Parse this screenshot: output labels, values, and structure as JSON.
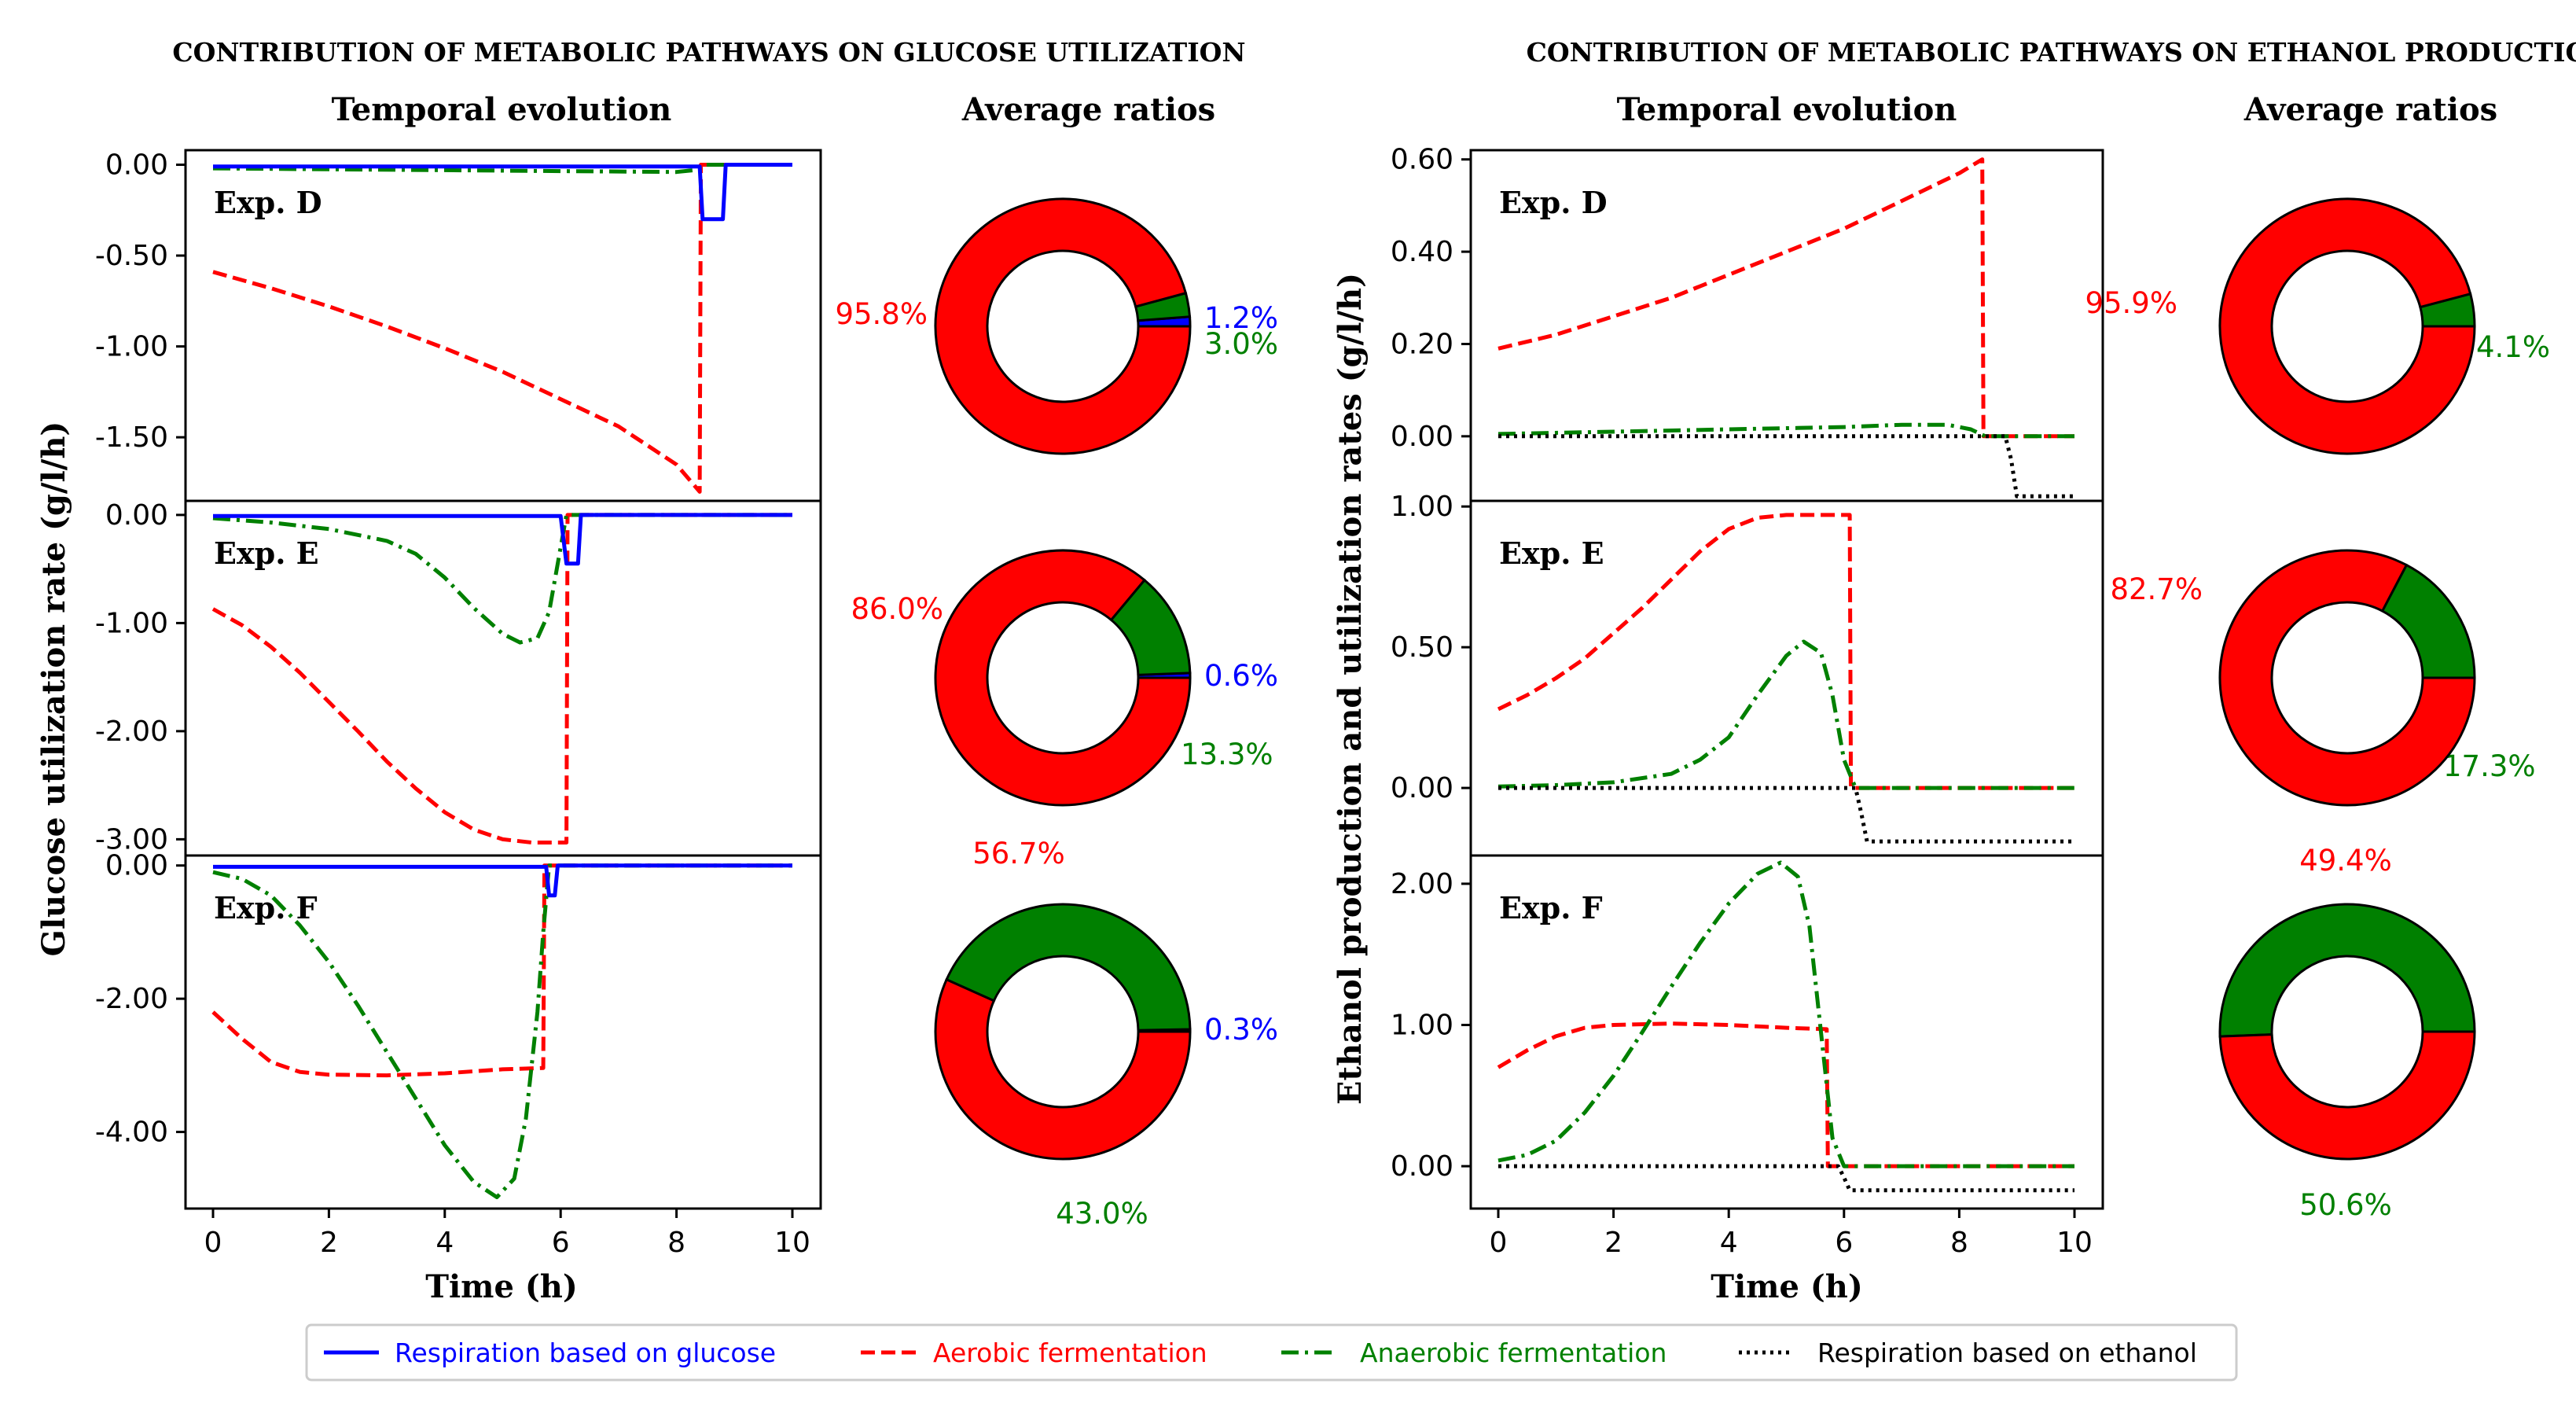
{
  "colors": {
    "respiration_glucose": "#0000ff",
    "aerobic_fermentation": "#ff0000",
    "anaerobic_fermentation": "#008000",
    "respiration_ethanol": "#000000"
  },
  "titles": {
    "left_main": "CONTRIBUTION OF METABOLIC PATHWAYS ON GLUCOSE UTILIZATION",
    "right_main": "CONTRIBUTION OF METABOLIC PATHWAYS ON ETHANOL PRODUCTION",
    "left_temporal": "Temporal evolution",
    "left_average": "Average ratios",
    "right_temporal": "Temporal evolution",
    "right_average": "Average ratios",
    "left_ylabel": "Glucose utilization rate (g/l/h)",
    "right_ylabel": "Ethanol production and utilization rates (g/l/h)",
    "left_xlabel": "Time (h)",
    "right_xlabel": "Time (h)"
  },
  "legend": {
    "respiration_glucose": "Respiration based on glucose",
    "aerobic_fermentation": "Aerobic fermentation",
    "anaerobic_fermentation": "Anaerobic fermentation",
    "respiration_ethanol": "Respiration based on ethanol"
  },
  "chart_data": [
    {
      "type": "line",
      "panel": "Glucose utilization - Exp. D",
      "label": "Exp. D",
      "xlim": [
        0,
        10
      ],
      "ylim": [
        -1.85,
        0.08
      ],
      "yticks": [
        0.0,
        -0.5,
        -1.0,
        -1.5
      ],
      "ytick_labels": [
        "0.00",
        "-0.50",
        "-1.00",
        "-1.50"
      ],
      "series": [
        {
          "key": "respiration_glucose",
          "x": [
            0,
            8.2,
            8.4,
            8.45,
            8.8,
            8.85,
            10
          ],
          "y": [
            -0.01,
            -0.01,
            -0.01,
            -0.3,
            -0.3,
            0,
            0
          ]
        },
        {
          "key": "aerobic_fermentation",
          "x": [
            0,
            1,
            2,
            3,
            4,
            5,
            6,
            7,
            8,
            8.4,
            8.42,
            10
          ],
          "y": [
            -0.59,
            -0.68,
            -0.78,
            -0.89,
            -1.01,
            -1.14,
            -1.29,
            -1.44,
            -1.65,
            -1.8,
            0,
            0
          ]
        },
        {
          "key": "anaerobic_fermentation",
          "x": [
            0,
            2,
            4,
            6,
            8,
            8.3,
            8.45,
            10
          ],
          "y": [
            -0.02,
            -0.025,
            -0.03,
            -0.035,
            -0.04,
            -0.03,
            0,
            0
          ]
        }
      ]
    },
    {
      "type": "line",
      "panel": "Glucose utilization - Exp. E",
      "label": "Exp. E",
      "xlim": [
        0,
        10
      ],
      "ylim": [
        -3.15,
        0.13
      ],
      "yticks": [
        0.0,
        -1.0,
        -2.0,
        -3.0
      ],
      "ytick_labels": [
        "0.00",
        "-1.00",
        "-2.00",
        "-3.00"
      ],
      "series": [
        {
          "key": "respiration_glucose",
          "x": [
            0,
            6.0,
            6.1,
            6.3,
            6.35,
            10
          ],
          "y": [
            -0.01,
            -0.01,
            -0.45,
            -0.45,
            0,
            0
          ]
        },
        {
          "key": "aerobic_fermentation",
          "x": [
            0,
            0.5,
            1,
            1.5,
            2,
            2.5,
            3,
            3.5,
            4,
            4.5,
            5,
            5.5,
            6.1,
            6.12,
            10
          ],
          "y": [
            -0.87,
            -1.02,
            -1.22,
            -1.46,
            -1.73,
            -2.0,
            -2.28,
            -2.53,
            -2.75,
            -2.91,
            -3.0,
            -3.03,
            -3.03,
            0,
            0
          ]
        },
        {
          "key": "anaerobic_fermentation",
          "x": [
            0,
            1,
            2,
            3,
            3.5,
            4,
            4.5,
            5,
            5.3,
            5.6,
            5.8,
            6.0,
            6.1,
            10
          ],
          "y": [
            -0.03,
            -0.07,
            -0.13,
            -0.24,
            -0.36,
            -0.58,
            -0.86,
            -1.1,
            -1.18,
            -1.14,
            -0.9,
            -0.3,
            0,
            0
          ]
        }
      ]
    },
    {
      "type": "line",
      "panel": "Glucose utilization - Exp. F",
      "label": "Exp. F",
      "xlim": [
        0,
        10
      ],
      "ylim": [
        -5.15,
        0.15
      ],
      "yticks": [
        0.0,
        -2.0,
        -4.0
      ],
      "ytick_labels": [
        "0.00",
        "-2.00",
        "-4.00"
      ],
      "series": [
        {
          "key": "respiration_glucose",
          "x": [
            0,
            5.75,
            5.8,
            5.9,
            5.95,
            10
          ],
          "y": [
            -0.02,
            -0.02,
            -0.45,
            -0.45,
            0,
            0
          ]
        },
        {
          "key": "aerobic_fermentation",
          "x": [
            0,
            0.5,
            1,
            1.5,
            2,
            3,
            4,
            5,
            5.7,
            5.72,
            10
          ],
          "y": [
            -2.2,
            -2.6,
            -2.95,
            -3.1,
            -3.14,
            -3.15,
            -3.12,
            -3.06,
            -3.04,
            0,
            0
          ]
        },
        {
          "key": "anaerobic_fermentation",
          "x": [
            0,
            0.5,
            1,
            1.5,
            2,
            2.5,
            3,
            3.5,
            4,
            4.5,
            4.9,
            5.2,
            5.4,
            5.6,
            5.7,
            5.8,
            10
          ],
          "y": [
            -0.1,
            -0.2,
            -0.45,
            -0.9,
            -1.45,
            -2.1,
            -2.8,
            -3.5,
            -4.2,
            -4.75,
            -4.98,
            -4.7,
            -3.8,
            -2.2,
            -1.0,
            0,
            0
          ]
        }
      ]
    },
    {
      "type": "line",
      "panel": "Ethanol - Exp. D",
      "label": "Exp. D",
      "xlim": [
        0,
        10
      ],
      "ylim": [
        -0.14,
        0.62
      ],
      "yticks": [
        0.6,
        0.4,
        0.2,
        0.0
      ],
      "ytick_labels": [
        "0.60",
        "0.40",
        "0.20",
        "0.00"
      ],
      "series": [
        {
          "key": "aerobic_fermentation",
          "x": [
            0,
            1,
            2,
            3,
            4,
            5,
            6,
            7,
            8,
            8.4,
            8.42,
            10
          ],
          "y": [
            0.19,
            0.22,
            0.26,
            0.3,
            0.35,
            0.4,
            0.45,
            0.51,
            0.57,
            0.6,
            0,
            0
          ]
        },
        {
          "key": "anaerobic_fermentation",
          "x": [
            0,
            2,
            4,
            6,
            7,
            7.8,
            8.2,
            8.45,
            10
          ],
          "y": [
            0.005,
            0.01,
            0.015,
            0.02,
            0.025,
            0.025,
            0.015,
            0,
            0
          ]
        },
        {
          "key": "respiration_ethanol",
          "x": [
            0,
            8.8,
            8.9,
            9.0,
            10
          ],
          "y": [
            0,
            0,
            -0.05,
            -0.13,
            -0.13
          ]
        }
      ]
    },
    {
      "type": "line",
      "panel": "Ethanol - Exp. E",
      "label": "Exp. E",
      "xlim": [
        0,
        10
      ],
      "ylim": [
        -0.24,
        1.02
      ],
      "yticks": [
        1.0,
        0.5,
        0.0
      ],
      "ytick_labels": [
        "1.00",
        "0.50",
        "0.00"
      ],
      "series": [
        {
          "key": "aerobic_fermentation",
          "x": [
            0,
            0.5,
            1,
            1.5,
            2,
            2.5,
            3,
            3.5,
            4,
            4.5,
            5,
            5.5,
            6.1,
            6.12,
            10
          ],
          "y": [
            0.28,
            0.33,
            0.39,
            0.46,
            0.55,
            0.64,
            0.74,
            0.84,
            0.92,
            0.96,
            0.97,
            0.97,
            0.97,
            0,
            0
          ]
        },
        {
          "key": "anaerobic_fermentation",
          "x": [
            0,
            1,
            2,
            3,
            3.5,
            4,
            4.5,
            5,
            5.3,
            5.6,
            5.8,
            6.0,
            6.2,
            10
          ],
          "y": [
            0.005,
            0.01,
            0.02,
            0.05,
            0.1,
            0.18,
            0.33,
            0.47,
            0.52,
            0.48,
            0.33,
            0.1,
            0,
            0
          ]
        },
        {
          "key": "respiration_ethanol",
          "x": [
            0,
            6.2,
            6.3,
            6.4,
            10
          ],
          "y": [
            0,
            0,
            -0.09,
            -0.19,
            -0.19
          ]
        }
      ]
    },
    {
      "type": "line",
      "panel": "Ethanol - Exp. F",
      "label": "Exp. F",
      "xlim": [
        0,
        10
      ],
      "ylim": [
        -0.3,
        2.2
      ],
      "yticks": [
        2.0,
        1.0,
        0.0
      ],
      "ytick_labels": [
        "2.00",
        "1.00",
        "0.00"
      ],
      "series": [
        {
          "key": "aerobic_fermentation",
          "x": [
            0,
            0.5,
            1,
            1.5,
            2,
            3,
            4,
            5,
            5.7,
            5.72,
            10
          ],
          "y": [
            0.7,
            0.82,
            0.92,
            0.98,
            1.0,
            1.01,
            1.0,
            0.98,
            0.97,
            0,
            0
          ]
        },
        {
          "key": "anaerobic_fermentation",
          "x": [
            0,
            0.5,
            1,
            1.5,
            2,
            2.5,
            3,
            3.5,
            4,
            4.5,
            4.9,
            5.2,
            5.4,
            5.6,
            5.8,
            6.0,
            10
          ],
          "y": [
            0.04,
            0.08,
            0.18,
            0.38,
            0.64,
            0.95,
            1.27,
            1.58,
            1.86,
            2.07,
            2.15,
            2.05,
            1.7,
            0.95,
            0.2,
            0,
            0
          ]
        },
        {
          "key": "respiration_ethanol",
          "x": [
            0,
            5.9,
            6.0,
            6.1,
            10
          ],
          "y": [
            0,
            0,
            -0.08,
            -0.17,
            -0.17
          ]
        }
      ]
    },
    {
      "type": "pie",
      "panel": "Glucose ratios - Exp. D",
      "slices": [
        {
          "key": "respiration_glucose",
          "value": 1.2,
          "label": "1.2%"
        },
        {
          "key": "anaerobic_fermentation",
          "value": 3.0,
          "label": "3.0%"
        },
        {
          "key": "aerobic_fermentation",
          "value": 95.8,
          "label": "95.8%"
        }
      ]
    },
    {
      "type": "pie",
      "panel": "Glucose ratios - Exp. E",
      "slices": [
        {
          "key": "respiration_glucose",
          "value": 0.6,
          "label": "0.6%"
        },
        {
          "key": "anaerobic_fermentation",
          "value": 13.3,
          "label": "13.3%"
        },
        {
          "key": "aerobic_fermentation",
          "value": 86.0,
          "label": "86.0%"
        }
      ]
    },
    {
      "type": "pie",
      "panel": "Glucose ratios - Exp. F",
      "slices": [
        {
          "key": "respiration_glucose",
          "value": 0.3,
          "label": "0.3%"
        },
        {
          "key": "anaerobic_fermentation",
          "value": 43.0,
          "label": "43.0%"
        },
        {
          "key": "aerobic_fermentation",
          "value": 56.7,
          "label": "56.7%"
        }
      ]
    },
    {
      "type": "pie",
      "panel": "Ethanol ratios - Exp. D",
      "slices": [
        {
          "key": "anaerobic_fermentation",
          "value": 4.1,
          "label": "4.1%"
        },
        {
          "key": "aerobic_fermentation",
          "value": 95.9,
          "label": "95.9%"
        }
      ]
    },
    {
      "type": "pie",
      "panel": "Ethanol ratios - Exp. E",
      "slices": [
        {
          "key": "anaerobic_fermentation",
          "value": 17.3,
          "label": "17.3%"
        },
        {
          "key": "aerobic_fermentation",
          "value": 82.7,
          "label": "82.7%"
        }
      ]
    },
    {
      "type": "pie",
      "panel": "Ethanol ratios - Exp. F",
      "slices": [
        {
          "key": "anaerobic_fermentation",
          "value": 50.6,
          "label": "50.6%"
        },
        {
          "key": "aerobic_fermentation",
          "value": 49.4,
          "label": "49.4%"
        }
      ]
    }
  ],
  "xticks": [
    0,
    2,
    4,
    6,
    8,
    10
  ],
  "xtick_labels": [
    "0",
    "2",
    "4",
    "6",
    "8",
    "10"
  ]
}
